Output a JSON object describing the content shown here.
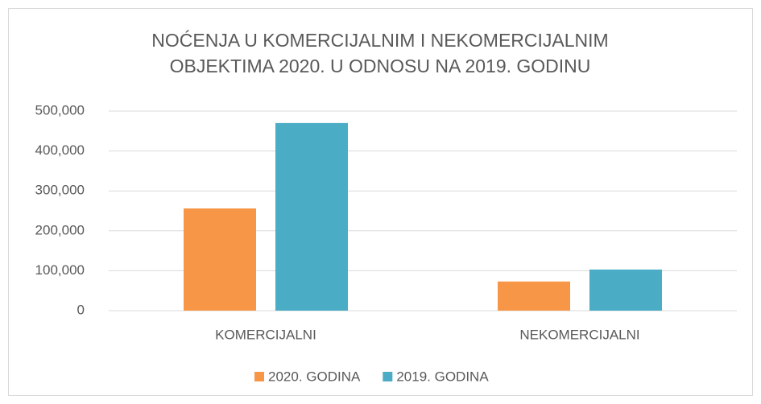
{
  "chart_data": {
    "type": "bar",
    "title": "NOĆENJA U KOMERCIJALNIM I NEKOMERCIJALNIM OBJEKTIMA 2020. U ODNOSU NA 2019. GODINU",
    "categories": [
      "KOMERCIJALNI",
      "NEKOMERCIJALNI"
    ],
    "series": [
      {
        "name": "2020. GODINA",
        "color": "#f79646",
        "values": [
          256000,
          73000
        ]
      },
      {
        "name": "2019. GODINA",
        "color": "#4bacc6",
        "values": [
          470000,
          103000
        ]
      }
    ],
    "ylim": [
      0,
      500000
    ],
    "yticks": [
      0,
      {
        "value": 100000,
        "label": "100,000"
      },
      {
        "value": 200000,
        "label": "200,000"
      },
      {
        "value": 300000,
        "label": "300,000"
      },
      {
        "value": 400000,
        "label": "400,000"
      },
      {
        "value": 500000,
        "label": "500,000"
      }
    ],
    "grid": true,
    "legend": "bottom"
  }
}
